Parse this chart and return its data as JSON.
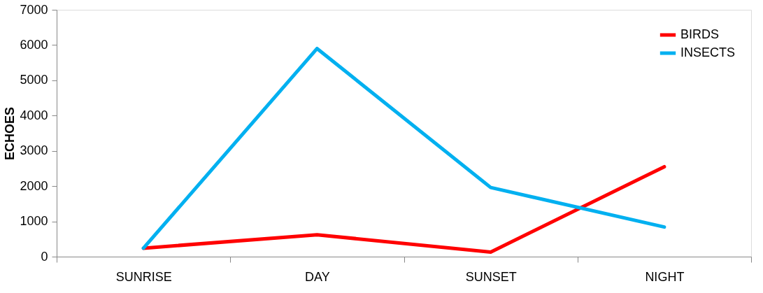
{
  "chart_data": {
    "type": "line",
    "ylabel": "ECHOES",
    "categories": [
      "SUNRISE",
      "DAY",
      "SUNSET",
      "NIGHT"
    ],
    "series": [
      {
        "name": "BIRDS",
        "color": "#ff0000",
        "values": [
          240,
          620,
          130,
          2550
        ]
      },
      {
        "name": "INSECTS",
        "color": "#00b0f0",
        "values": [
          240,
          5900,
          1960,
          840
        ]
      }
    ],
    "ylim": [
      0,
      7000
    ],
    "yticks": [
      0,
      1000,
      2000,
      3000,
      4000,
      5000,
      6000,
      7000
    ],
    "grid": false,
    "legend": "top right",
    "marker": "none",
    "line_style": "solid"
  }
}
